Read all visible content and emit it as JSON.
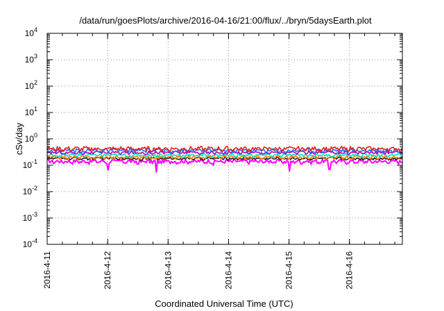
{
  "chart_data": {
    "type": "line",
    "title": "/data/run/goesPlots/archive/2016-04-16/21:00/flux/../bryn/5daysEarth.plot",
    "xlabel": "Coordinated Universal Time (UTC)",
    "ylabel": "cSv/day",
    "yscale": "log",
    "ylim": [
      0.0001,
      10000
    ],
    "y_ticks": [
      {
        "base": "10",
        "exp": "-4",
        "value": 0.0001
      },
      {
        "base": "10",
        "exp": "-3",
        "value": 0.001
      },
      {
        "base": "10",
        "exp": "-2",
        "value": 0.01
      },
      {
        "base": "10",
        "exp": "-1",
        "value": 0.1
      },
      {
        "base": "10",
        "exp": "0",
        "value": 1
      },
      {
        "base": "10",
        "exp": "1",
        "value": 10
      },
      {
        "base": "10",
        "exp": "2",
        "value": 100
      },
      {
        "base": "10",
        "exp": "3",
        "value": 1000
      },
      {
        "base": "10",
        "exp": "4",
        "value": 10000
      }
    ],
    "x_range": [
      "2016-04-11 00:00",
      "2016-04-16 21:00"
    ],
    "x_ticks": [
      {
        "label": "2016-4-11",
        "date": "2016-04-11"
      },
      {
        "label": "2016-4-12",
        "date": "2016-04-12"
      },
      {
        "label": "2016-4-13",
        "date": "2016-04-13"
      },
      {
        "label": "2016-4-14",
        "date": "2016-04-14"
      },
      {
        "label": "2016-4-15",
        "date": "2016-04-15"
      },
      {
        "label": "2016-4-16",
        "date": "2016-04-16"
      }
    ],
    "grid": true,
    "series": [
      {
        "color": "#ff00ff",
        "base": 0.14,
        "amp": 0.025,
        "dips": [
          [
            "2016-04-12 00:00",
            0.065
          ],
          [
            "2016-04-12 19:30",
            0.055
          ],
          [
            "2016-04-15 00:00",
            0.06
          ],
          [
            "2016-04-15 16:00",
            0.07
          ],
          [
            "2016-04-12 12:00",
            0.11
          ],
          [
            "2016-04-13 18:00",
            0.1
          ]
        ]
      },
      {
        "color": "#1c1c1c",
        "base": 0.18,
        "amp": 0.02,
        "dips": []
      },
      {
        "color": "#ff7f00",
        "base": 0.2,
        "amp": 0.025,
        "dips": []
      },
      {
        "color": "#00e0c0",
        "base": 0.24,
        "amp": 0.03,
        "dips": []
      },
      {
        "color": "#b000b0",
        "base": 0.3,
        "amp": 0.04,
        "dips": []
      },
      {
        "color": "#1e6bff",
        "base": 0.36,
        "amp": 0.06,
        "dips": []
      },
      {
        "color": "#e02020",
        "base": 0.42,
        "amp": 0.08,
        "dips": []
      }
    ]
  }
}
